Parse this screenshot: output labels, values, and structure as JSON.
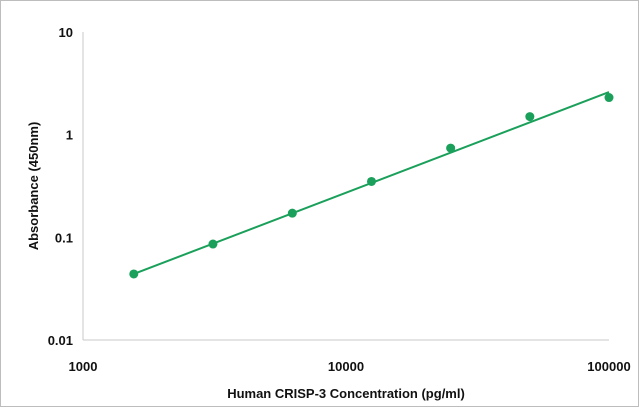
{
  "chart_data": {
    "type": "scatter",
    "title": "",
    "xlabel": "Human CRISP-3  Concentration (pg/ml)",
    "ylabel": "Absorbance (450nm)",
    "x_scale": "log",
    "y_scale": "log",
    "xlim": [
      1000,
      100000
    ],
    "ylim": [
      0.01,
      10
    ],
    "x_ticks": [
      1000,
      10000,
      100000
    ],
    "x_tick_labels": [
      "1000",
      "10000",
      "100000"
    ],
    "y_ticks": [
      0.01,
      0.1,
      1,
      10
    ],
    "y_tick_labels": [
      "0.01",
      "0.1",
      "1",
      "10"
    ],
    "grid": false,
    "legend": "none",
    "series": [
      {
        "color": "#1aa05a",
        "x": [
          1560,
          3120,
          6250,
          12500,
          25000,
          50000,
          100000
        ],
        "y": [
          0.044,
          0.086,
          0.172,
          0.35,
          0.74,
          1.5,
          2.3
        ]
      }
    ],
    "fit_line": {
      "color": "#1aa05a",
      "x": [
        1560,
        100000
      ],
      "y": [
        0.044,
        2.6
      ]
    }
  }
}
